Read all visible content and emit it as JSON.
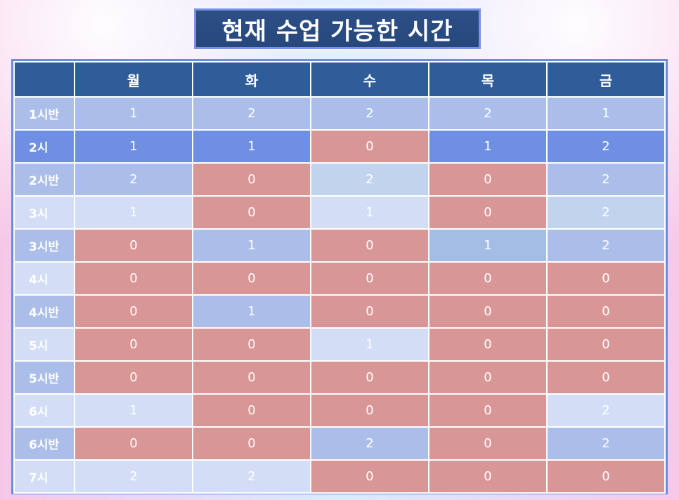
{
  "title": "현재 수업 가능한 시간",
  "columns": [
    "",
    "월",
    "화",
    "수",
    "목",
    "금"
  ],
  "rows": [
    {
      "label": "1시반",
      "values": [
        "1",
        "2",
        "2",
        "2",
        "1"
      ],
      "colors": [
        "#abbde9",
        "#abbde9",
        "#abbde9",
        "#abbde9",
        "#abbde9"
      ],
      "label_color": "#abbde9"
    },
    {
      "label": "2시",
      "values": [
        "1",
        "1",
        "0",
        "1",
        "2"
      ],
      "colors": [
        "#6f8fe2",
        "#6f8fe2",
        "#d99696",
        "#6f8fe2",
        "#6f8fe2"
      ],
      "label_color": "#6f8fe2"
    },
    {
      "label": "2시반",
      "values": [
        "2",
        "0",
        "2",
        "0",
        "2"
      ],
      "colors": [
        "#abbde9",
        "#d99696",
        "#c2d3ee",
        "#d99696",
        "#abbde9"
      ],
      "label_color": "#abbde9"
    },
    {
      "label": "3시",
      "values": [
        "1",
        "0",
        "1",
        "0",
        "2"
      ],
      "colors": [
        "#d3def6",
        "#d99696",
        "#d3def6",
        "#d99696",
        "#c2d3ee"
      ],
      "label_color": "#d3def6"
    },
    {
      "label": "3시반",
      "values": [
        "0",
        "1",
        "0",
        "1",
        "2"
      ],
      "colors": [
        "#d99696",
        "#abbde9",
        "#d99696",
        "#a3bde4",
        "#abbde9"
      ],
      "label_color": "#abbde9"
    },
    {
      "label": "4시",
      "values": [
        "0",
        "0",
        "0",
        "0",
        "0"
      ],
      "colors": [
        "#d99696",
        "#d99696",
        "#d99696",
        "#d99696",
        "#d99696"
      ],
      "label_color": "#d3def6"
    },
    {
      "label": "4시반",
      "values": [
        "0",
        "1",
        "0",
        "0",
        "0"
      ],
      "colors": [
        "#d99696",
        "#abbde9",
        "#d99696",
        "#d99696",
        "#d99696"
      ],
      "label_color": "#abbde9"
    },
    {
      "label": "5시",
      "values": [
        "0",
        "0",
        "1",
        "0",
        "0"
      ],
      "colors": [
        "#d99696",
        "#d99696",
        "#d3def6",
        "#d99696",
        "#d99696"
      ],
      "label_color": "#d3def6"
    },
    {
      "label": "5시반",
      "values": [
        "0",
        "0",
        "0",
        "0",
        "0"
      ],
      "colors": [
        "#d99696",
        "#d99696",
        "#d99696",
        "#d99696",
        "#d99696"
      ],
      "label_color": "#abbde9"
    },
    {
      "label": "6시",
      "values": [
        "1",
        "0",
        "0",
        "0",
        "2"
      ],
      "colors": [
        "#d3def6",
        "#d99696",
        "#d99696",
        "#d99696",
        "#d3def6"
      ],
      "label_color": "#d3def6"
    },
    {
      "label": "6시반",
      "values": [
        "0",
        "0",
        "2",
        "0",
        "2"
      ],
      "colors": [
        "#d99696",
        "#d99696",
        "#abbde9",
        "#d99696",
        "#abbde9"
      ],
      "label_color": "#abbde9"
    },
    {
      "label": "7시",
      "values": [
        "2",
        "2",
        "0",
        "0",
        "0"
      ],
      "colors": [
        "#d3def6",
        "#d3def6",
        "#d99696",
        "#d99696",
        "#d99696"
      ],
      "label_color": "#d3def6"
    }
  ]
}
